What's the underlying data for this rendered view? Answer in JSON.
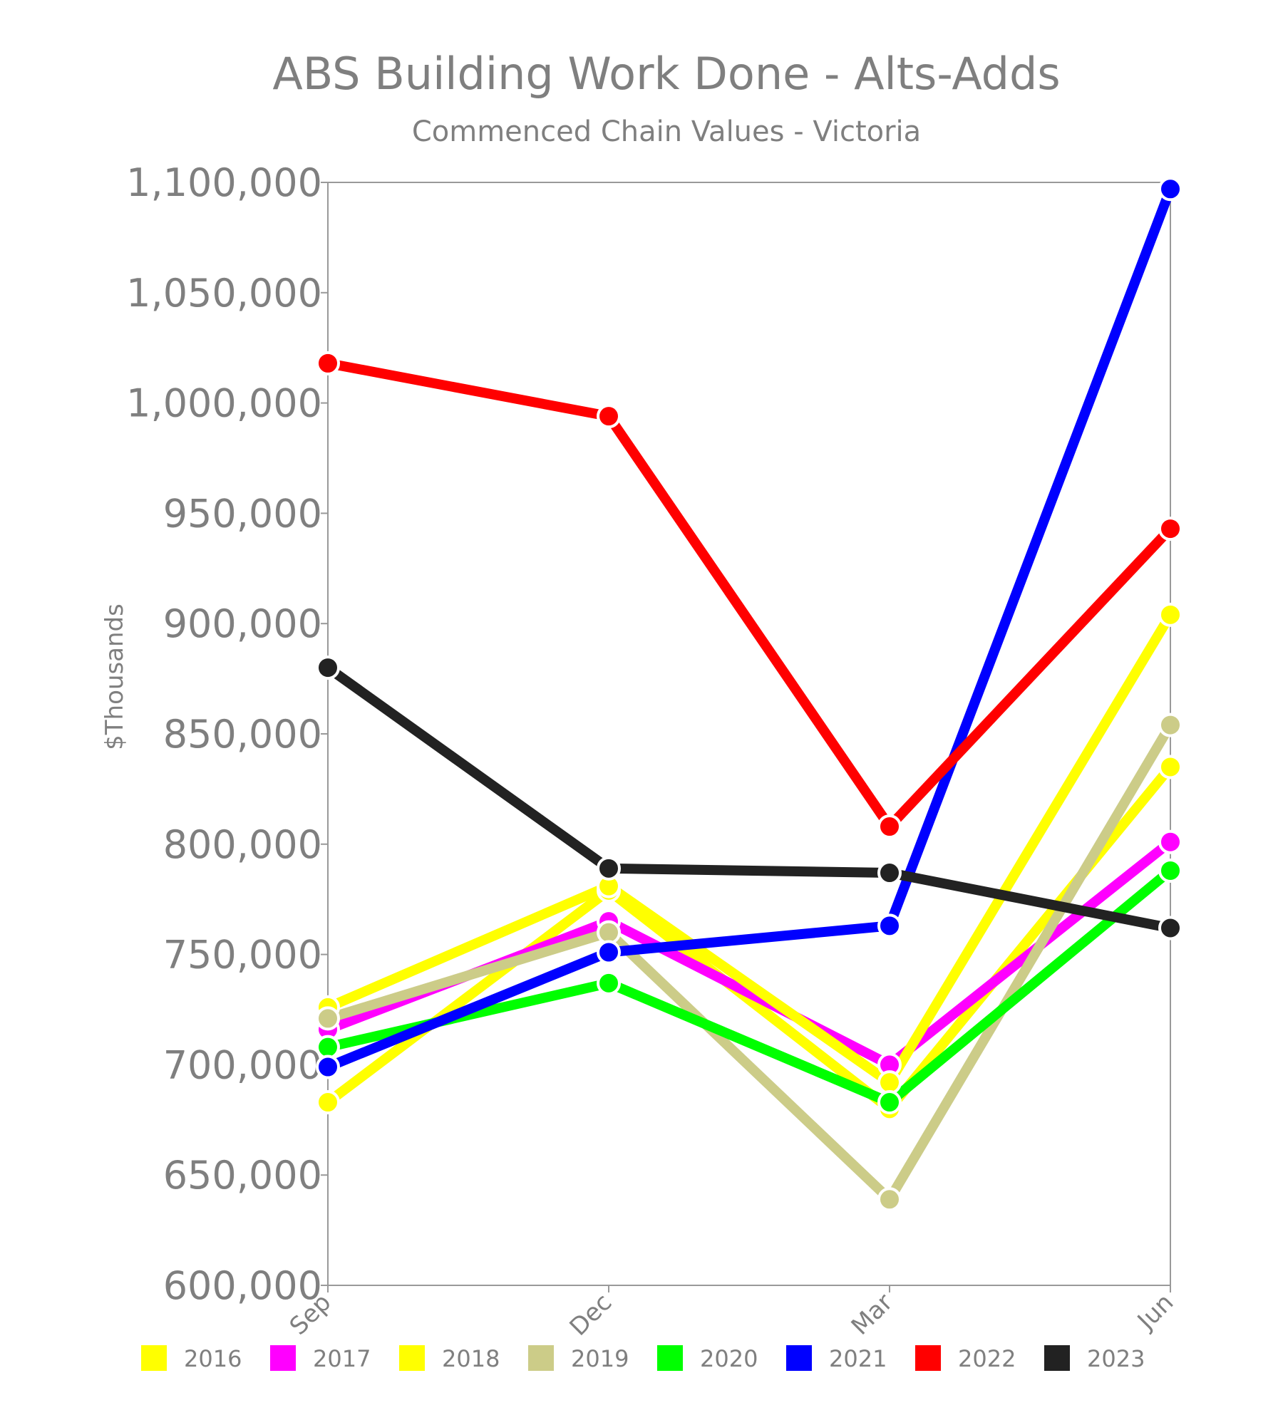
{
  "chart_data": {
    "type": "line",
    "title": "ABS Building Work Done - Alts-Adds",
    "subtitle": "Commenced Chain Values - Victoria",
    "xlabel": "",
    "ylabel": "$Thousands",
    "categories": [
      "Sep",
      "Dec",
      "Mar",
      "Jun"
    ],
    "ylim": [
      600000,
      1100000
    ],
    "yticks": [
      600000,
      650000,
      700000,
      750000,
      800000,
      850000,
      900000,
      950000,
      1000000,
      1050000,
      1100000
    ],
    "ytick_labels": [
      "600,000",
      "650,000",
      "700,000",
      "750,000",
      "800,000",
      "850,000",
      "900,000",
      "950,000",
      "1,000,000",
      "1,050,000",
      "1,100,000"
    ],
    "grid": false,
    "legend_position": "bottom",
    "series": [
      {
        "name": "2016",
        "color": "#ffff00",
        "values": [
          683000,
          779000,
          680000,
          835000
        ]
      },
      {
        "name": "2017",
        "color": "#ff00ff",
        "values": [
          716000,
          765000,
          700000,
          801000
        ]
      },
      {
        "name": "2018",
        "color": "#ffff00",
        "values": [
          726000,
          781000,
          692000,
          904000
        ]
      },
      {
        "name": "2019",
        "color": "#cccc88",
        "values": [
          721000,
          760000,
          639000,
          854000
        ]
      },
      {
        "name": "2020",
        "color": "#00ff00",
        "values": [
          708000,
          737000,
          683000,
          788000
        ]
      },
      {
        "name": "2021",
        "color": "#0000ff",
        "values": [
          699000,
          751000,
          763000,
          1097000
        ]
      },
      {
        "name": "2022",
        "color": "#ff0000",
        "values": [
          1018000,
          994000,
          808000,
          943000
        ]
      },
      {
        "name": "2023",
        "color": "#222222",
        "values": [
          880000,
          789000,
          787000,
          762000
        ]
      }
    ]
  }
}
